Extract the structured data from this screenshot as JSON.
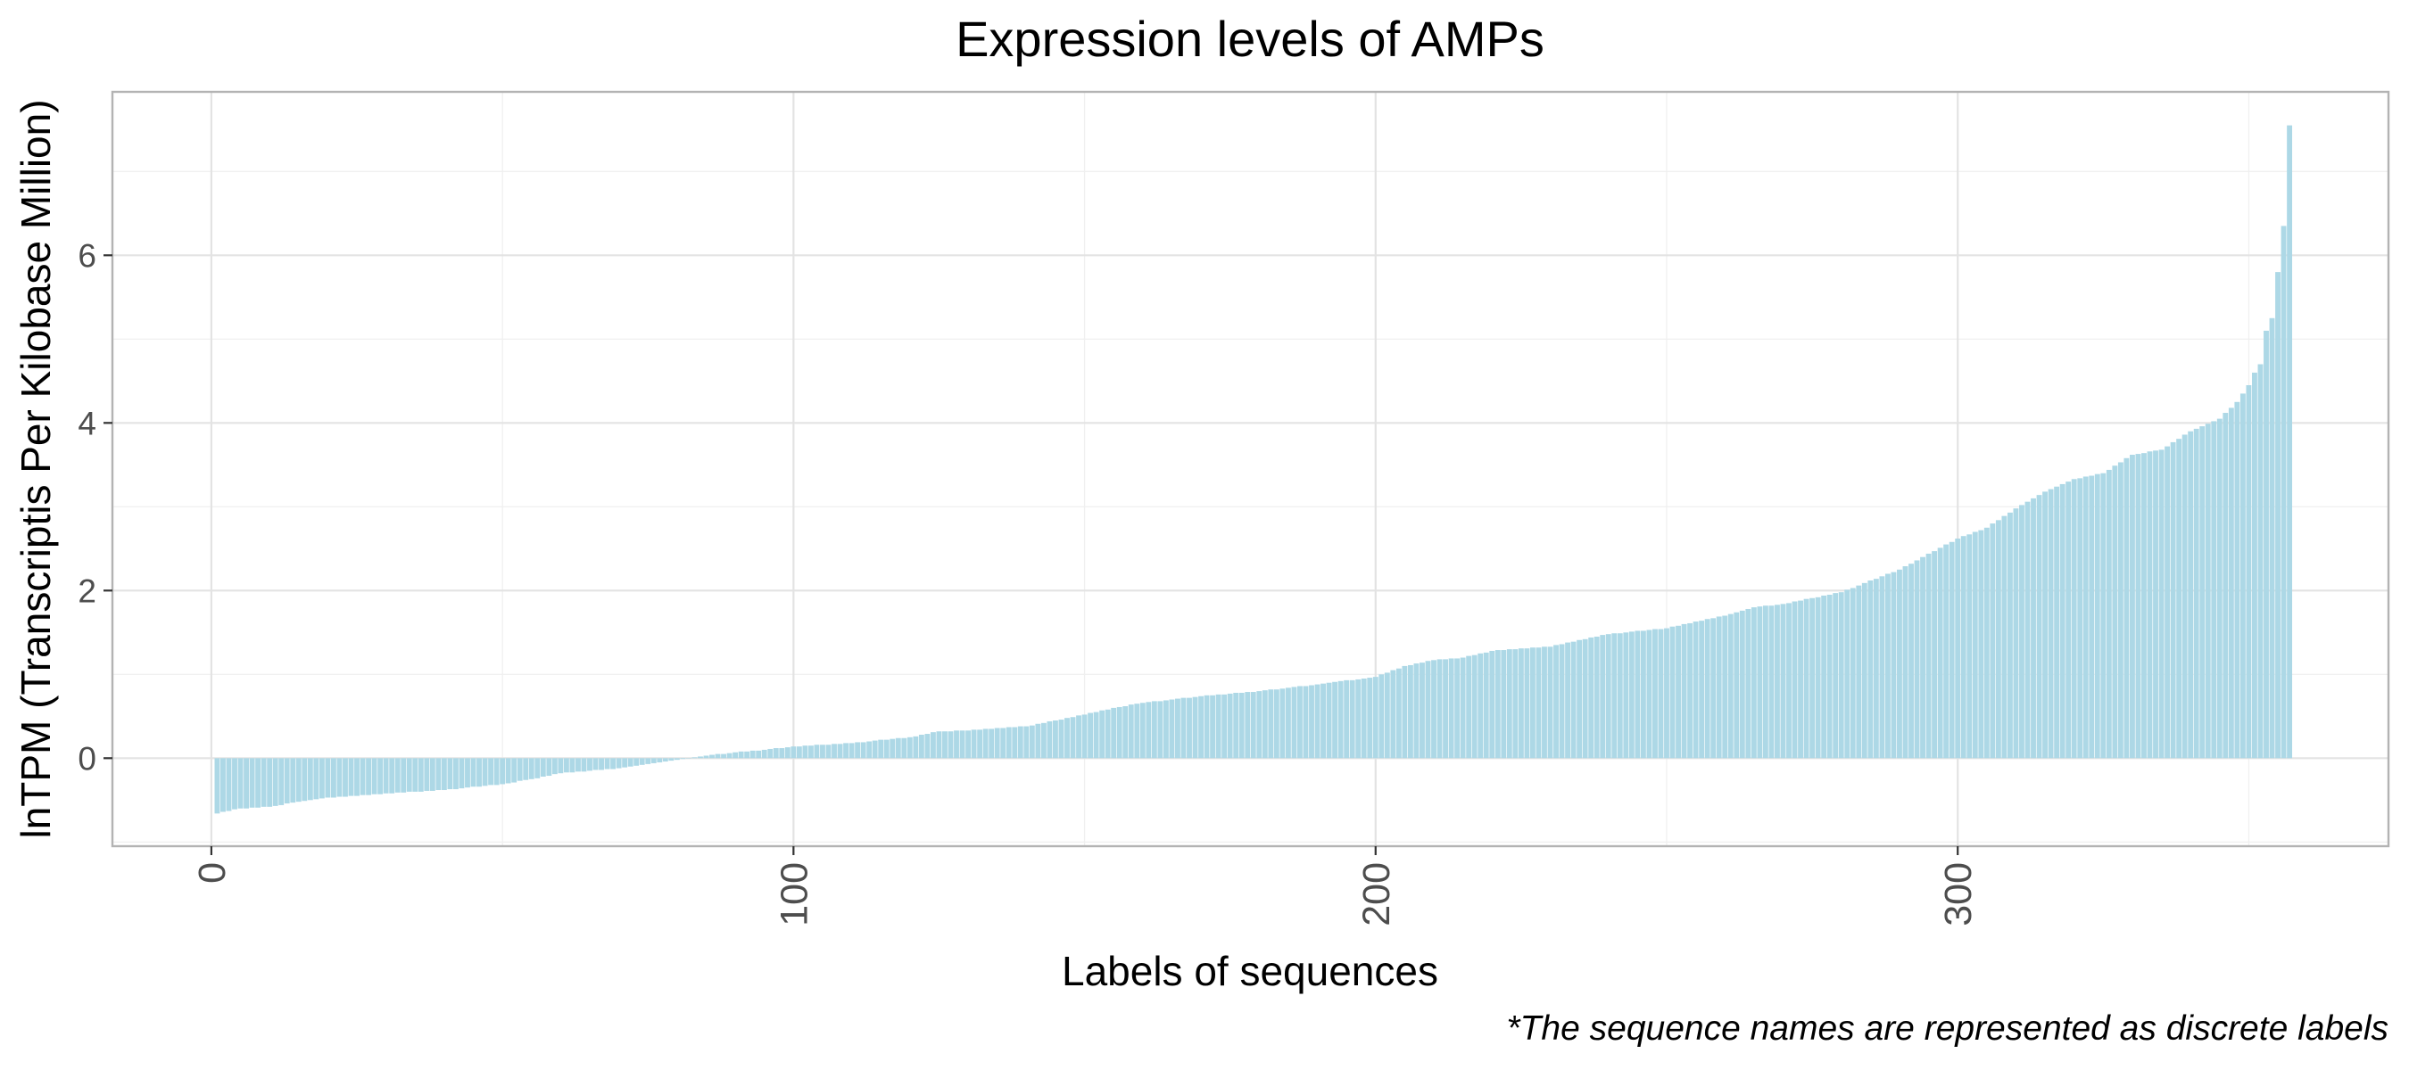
{
  "chart_data": {
    "type": "bar",
    "title": "Expression levels of AMPs",
    "xlabel": "Labels of sequences",
    "ylabel": "lnTPM (Transcriptis Per Kilobase Million)",
    "caption": "*The sequence names are represented as discrete labels",
    "n_bars": 357,
    "xlim": [
      -17,
      374
    ],
    "ylim": [
      -1.05,
      7.95
    ],
    "x_ticks": [
      0,
      100,
      200,
      300
    ],
    "x_tick_labels": [
      "0",
      "100",
      "200",
      "300"
    ],
    "y_ticks": [
      0,
      2,
      4,
      6
    ],
    "y_tick_labels": [
      "0",
      "2",
      "4",
      "6"
    ],
    "grid": true,
    "bar_color": "#add8e6",
    "profile": [
      [
        1,
        -0.66
      ],
      [
        5,
        -0.6
      ],
      [
        10,
        -0.58
      ],
      [
        15,
        -0.52
      ],
      [
        20,
        -0.47
      ],
      [
        25,
        -0.45
      ],
      [
        30,
        -0.42
      ],
      [
        40,
        -0.38
      ],
      [
        50,
        -0.31
      ],
      [
        55,
        -0.25
      ],
      [
        60,
        -0.18
      ],
      [
        70,
        -0.12
      ],
      [
        75,
        -0.07
      ],
      [
        80,
        -0.02
      ],
      [
        85,
        0.03
      ],
      [
        90,
        0.07
      ],
      [
        95,
        0.1
      ],
      [
        100,
        0.14
      ],
      [
        110,
        0.18
      ],
      [
        120,
        0.25
      ],
      [
        125,
        0.32
      ],
      [
        130,
        0.33
      ],
      [
        140,
        0.38
      ],
      [
        150,
        0.52
      ],
      [
        155,
        0.6
      ],
      [
        160,
        0.66
      ],
      [
        170,
        0.74
      ],
      [
        180,
        0.8
      ],
      [
        190,
        0.88
      ],
      [
        200,
        0.97
      ],
      [
        205,
        1.1
      ],
      [
        210,
        1.17
      ],
      [
        215,
        1.2
      ],
      [
        220,
        1.28
      ],
      [
        230,
        1.33
      ],
      [
        240,
        1.48
      ],
      [
        250,
        1.55
      ],
      [
        260,
        1.7
      ],
      [
        265,
        1.8
      ],
      [
        270,
        1.84
      ],
      [
        280,
        1.98
      ],
      [
        290,
        2.25
      ],
      [
        300,
        2.62
      ],
      [
        305,
        2.75
      ],
      [
        310,
        2.98
      ],
      [
        315,
        3.18
      ],
      [
        320,
        3.33
      ],
      [
        325,
        3.4
      ],
      [
        330,
        3.62
      ],
      [
        335,
        3.68
      ],
      [
        340,
        3.9
      ],
      [
        345,
        4.05
      ],
      [
        348,
        4.25
      ],
      [
        350,
        4.45
      ],
      [
        351,
        4.6
      ],
      [
        352,
        4.7
      ],
      [
        353,
        5.1
      ],
      [
        354,
        5.25
      ],
      [
        355,
        5.8
      ],
      [
        356,
        6.35
      ],
      [
        357,
        7.55
      ]
    ]
  }
}
